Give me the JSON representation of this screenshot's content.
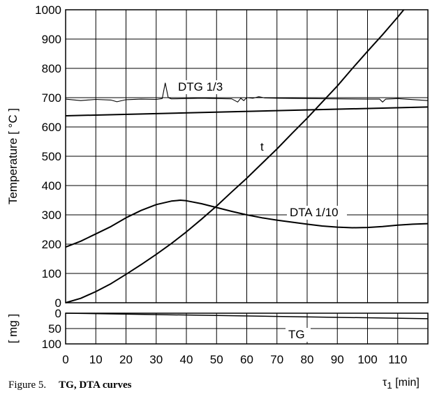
{
  "chart_data": {
    "type": "line",
    "caption_label": "Figure 5.",
    "caption_title": "TG, DTA curves",
    "xunit_symbol": "τ",
    "xunit_sub": "1",
    "xunit_rest": " [min]",
    "xticks": [
      0,
      10,
      20,
      30,
      40,
      50,
      60,
      70,
      80,
      90,
      100,
      110
    ],
    "xlim": [
      0,
      120
    ],
    "top_panel": {
      "ylabel": "Temperature [ °C ]",
      "ylim": [
        0,
        1000
      ],
      "yticks": [
        0,
        100,
        200,
        300,
        400,
        500,
        600,
        700,
        800,
        900,
        1000
      ],
      "series": [
        {
          "name": "t",
          "x": [
            0,
            5,
            10,
            15,
            20,
            25,
            30,
            35,
            40,
            45,
            50,
            55,
            60,
            65,
            70,
            75,
            80,
            85,
            90,
            95,
            100,
            105,
            110,
            112
          ],
          "y": [
            0,
            15,
            38,
            65,
            97,
            130,
            165,
            202,
            242,
            285,
            330,
            378,
            425,
            475,
            525,
            578,
            630,
            685,
            740,
            800,
            858,
            915,
            975,
            1000
          ]
        },
        {
          "name": "DTA 1/10",
          "x": [
            0,
            5,
            10,
            15,
            20,
            25,
            30,
            35,
            38,
            40,
            45,
            50,
            55,
            60,
            65,
            70,
            75,
            80,
            85,
            90,
            95,
            100,
            105,
            110,
            115,
            120
          ],
          "y": [
            190,
            210,
            235,
            260,
            290,
            315,
            335,
            347,
            350,
            348,
            338,
            325,
            312,
            300,
            290,
            282,
            275,
            268,
            262,
            258,
            256,
            257,
            260,
            265,
            268,
            270
          ]
        },
        {
          "name": "DTG 1/3",
          "x": [
            0,
            2,
            5,
            10,
            15,
            17,
            20,
            25,
            30,
            32,
            33,
            34,
            35,
            40,
            45,
            50,
            55,
            57,
            58,
            59,
            60,
            62,
            64,
            66,
            70,
            80,
            90,
            100,
            104,
            105,
            106,
            110,
            120
          ],
          "y": [
            695,
            693,
            690,
            694,
            692,
            686,
            693,
            695,
            694,
            697,
            750,
            700,
            696,
            697,
            698,
            697,
            696,
            685,
            698,
            690,
            700,
            698,
            703,
            699,
            698,
            697,
            696,
            695,
            695,
            685,
            695,
            697,
            690
          ]
        },
        {
          "name": "",
          "x": [
            0,
            120
          ],
          "y": [
            638,
            668
          ]
        }
      ],
      "labels": [
        {
          "series": "DTG 1/3",
          "text": "DTG 1/3"
        },
        {
          "series": "t",
          "text": "t"
        },
        {
          "series": "DTA 1/10",
          "text": "DTA 1/10"
        }
      ]
    },
    "bottom_panel": {
      "ylabel": "[ mg ]",
      "ylim": [
        0,
        100
      ],
      "yticks": [
        0,
        50,
        100
      ],
      "inverted": true,
      "series": [
        {
          "name": "TG",
          "x": [
            0,
            120
          ],
          "y": [
            0,
            18
          ]
        }
      ],
      "labels": [
        {
          "series": "TG",
          "text": "TG"
        }
      ]
    },
    "grid": true
  }
}
